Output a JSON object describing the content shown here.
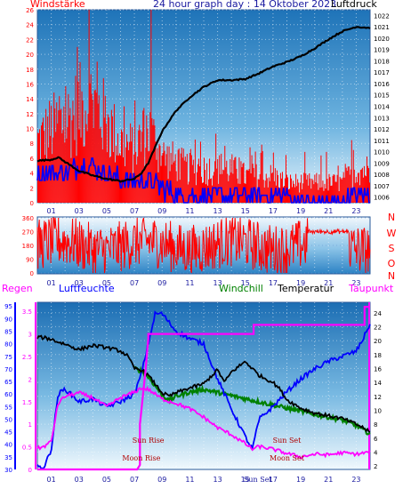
{
  "header": {
    "title": "24 hour graph day : 14 Oktober 2023",
    "left_label": "Windstärke",
    "right_label": "Luftdruck"
  },
  "colors": {
    "wind": "#ff0000",
    "gust_bars": "#ff0000",
    "wind_avg": "#0000ff",
    "pressure": "#000000",
    "direction": "#ff0000",
    "humidity": "#0000ff",
    "windchill": "#008000",
    "temperature": "#000000",
    "dewpoint": "#ff00ff",
    "rain": "#ff00ff",
    "left_axis": "#ff0000",
    "humidity_axis": "#0000ff"
  },
  "chart_data": [
    {
      "type": "bar",
      "title": "24 hour graph day : 14 Oktober 2023",
      "xticks": [
        "01",
        "03",
        "05",
        "07",
        "09",
        "11",
        "13",
        "15",
        "17",
        "19",
        "21",
        "23"
      ],
      "y_left": {
        "label": "Windstärke",
        "ticks": [
          0,
          2,
          4,
          6,
          8,
          10,
          12,
          14,
          16,
          18,
          20,
          22,
          24,
          26
        ],
        "ylim": [
          0,
          26
        ]
      },
      "y_right": {
        "label": "Luftdruck",
        "ticks": [
          1006,
          1007,
          1008,
          1009,
          1010,
          1011,
          1012,
          1013,
          1014,
          1015,
          1016,
          1017,
          1018,
          1019,
          1020,
          1021,
          1022
        ],
        "ylim": [
          1005.5,
          1022.5
        ]
      },
      "pressure": {
        "hours": [
          0,
          1,
          1.5,
          2,
          3,
          4,
          5,
          6,
          7,
          7.5,
          8,
          8.5,
          9,
          10,
          11,
          12,
          13,
          14,
          15,
          16,
          17,
          18,
          19,
          20,
          21,
          22,
          23,
          24
        ],
        "values": [
          1009.2,
          1009.3,
          1009.5,
          1009.1,
          1008.3,
          1007.9,
          1007.6,
          1007.4,
          1007.6,
          1008.1,
          1009.0,
          1010.4,
          1011.8,
          1013.6,
          1014.8,
          1015.7,
          1016.3,
          1016.3,
          1016.4,
          1016.9,
          1017.5,
          1017.9,
          1018.4,
          1019.1,
          1019.9,
          1020.6,
          1021.0,
          1020.9
        ]
      },
      "wind_gust_profile": {
        "hours": [
          0,
          1,
          2,
          3,
          4,
          5,
          6,
          7,
          8,
          9,
          10,
          11,
          12,
          13,
          14,
          15,
          16,
          17,
          18,
          19,
          20,
          21,
          22,
          23,
          24
        ],
        "values": [
          9,
          11,
          12,
          14,
          15,
          12,
          9,
          8,
          11,
          7,
          6,
          5,
          5,
          5,
          5,
          4,
          4,
          4,
          3,
          3,
          3,
          3,
          3,
          5,
          5
        ]
      },
      "wind_gust_peaks": [
        {
          "hour": 3.7,
          "value": 26
        },
        {
          "hour": 8.2,
          "value": 26
        },
        {
          "hour": 2.9,
          "value": 21
        },
        {
          "hour": 4.3,
          "value": 19
        }
      ],
      "wind_avg_profile": {
        "hours": [
          0,
          1,
          2,
          3,
          4,
          5,
          6,
          7,
          8,
          9,
          10,
          11,
          12,
          13,
          14,
          15,
          16,
          17,
          18,
          19,
          20,
          21,
          22,
          23,
          24
        ],
        "values": [
          4,
          4,
          4,
          5,
          5,
          4,
          3,
          3,
          3,
          2,
          1,
          1,
          1,
          1,
          1,
          1,
          1,
          1,
          1,
          0,
          0,
          0,
          0,
          1,
          1
        ]
      }
    },
    {
      "type": "line",
      "xticks": [
        "01",
        "03",
        "05",
        "07",
        "09",
        "11",
        "13",
        "15",
        "17",
        "19",
        "21",
        "23"
      ],
      "yticks": [
        0,
        90,
        180,
        270,
        360
      ],
      "ylim": [
        0,
        360
      ],
      "compass_labels": [
        "N",
        "W",
        "S",
        "O",
        "N"
      ]
    },
    {
      "type": "line",
      "xticks": [
        "01",
        "03",
        "05",
        "07",
        "09",
        "11",
        "13",
        "15",
        "17",
        "19",
        "21",
        "23"
      ],
      "legend": [
        "Regen",
        "Luftfeuchte",
        "Windchill",
        "Temperatur",
        "Taupunkt"
      ],
      "rain_axis": {
        "label": "Regen",
        "ticks": [
          0,
          0.5,
          1,
          1.5,
          2,
          2.5,
          3,
          3.5
        ],
        "ylim": [
          0,
          3.7
        ]
      },
      "humidity_axis": {
        "label": "Luftfeuchte",
        "ticks": [
          30,
          35,
          40,
          45,
          50,
          55,
          60,
          65,
          70,
          75,
          80,
          85,
          90,
          95
        ],
        "ylim": [
          30,
          96.5
        ]
      },
      "temperature_axis": {
        "label": "Temperatur",
        "ticks": [
          2,
          4,
          6,
          8,
          10,
          12,
          14,
          16,
          18,
          20,
          22,
          24
        ],
        "ylim": [
          1.5,
          25.5
        ]
      },
      "temperature": {
        "hours": [
          0,
          0.5,
          1,
          1.5,
          2,
          3,
          4,
          5,
          6,
          6.5,
          7,
          7.5,
          8,
          9,
          9.5,
          10,
          11,
          12,
          13,
          13.5,
          14,
          15,
          15.5,
          16,
          17,
          17.5,
          18,
          19,
          20,
          21,
          22,
          23,
          23.5,
          24
        ],
        "values": [
          20.5,
          20.4,
          20.2,
          19.8,
          19.5,
          18.7,
          19.3,
          19.0,
          18.5,
          17.8,
          16.0,
          15.8,
          15.0,
          12.5,
          12.0,
          12.5,
          13.2,
          13.8,
          15.8,
          14.0,
          15.5,
          17.0,
          16.0,
          15.0,
          14.0,
          13.0,
          11.5,
          10.3,
          9.6,
          9.2,
          8.8,
          8.0,
          7.5,
          6.8
        ]
      },
      "dewpoint": {
        "hours": [
          0,
          0.5,
          1,
          1.5,
          2,
          3,
          4,
          5,
          6,
          7,
          7.5,
          8,
          9,
          10,
          11,
          12,
          13,
          14,
          15,
          15.5,
          16,
          17,
          18,
          19,
          20,
          21,
          22,
          23,
          24
        ],
        "values": [
          4.5,
          4.8,
          5.5,
          11.0,
          12.0,
          12.5,
          11.8,
          10.5,
          11.8,
          12.6,
          13.2,
          13.0,
          11.6,
          11.0,
          10.2,
          9.0,
          7.5,
          6.5,
          5.2,
          4.4,
          4.8,
          4.4,
          3.8,
          3.3,
          3.7,
          3.6,
          3.9,
          3.7,
          4.0
        ]
      },
      "windchill": {
        "hours": [
          7,
          7.5,
          8,
          9,
          9.5,
          10,
          11,
          12,
          20,
          21,
          22,
          23,
          23.5,
          24
        ],
        "values": [
          16.0,
          15.6,
          14.8,
          12.2,
          11.4,
          12.0,
          12.6,
          13.0,
          9.4,
          9.0,
          8.6,
          7.8,
          7.2,
          6.6
        ]
      },
      "humidity": {
        "hours": [
          0,
          0.5,
          1,
          1.5,
          2,
          3,
          4,
          5,
          6,
          7,
          7.5,
          8,
          8.5,
          9,
          10,
          11,
          12,
          13,
          14,
          15,
          15.5,
          16,
          17,
          18,
          19,
          20,
          21,
          22,
          23,
          23.5,
          24
        ],
        "values": [
          31,
          31,
          38,
          60,
          62,
          57,
          58,
          55,
          57,
          60,
          68,
          80,
          92,
          92,
          85,
          82,
          80,
          66,
          54,
          43,
          38,
          50,
          55,
          61,
          66,
          70,
          73,
          75,
          77,
          82,
          88
        ]
      },
      "rain": {
        "hours": [
          0,
          7.2,
          7.4,
          7.4,
          7.8,
          8.0,
          8.0,
          15.6,
          15.6,
          23.6,
          23.6,
          24
        ],
        "values": [
          0,
          0,
          0.1,
          1.0,
          2.2,
          2.9,
          3.0,
          3.0,
          3.2,
          3.2,
          3.6,
          3.6
        ]
      },
      "astro_labels": [
        {
          "text": "Sun Rise",
          "hour": 8.0
        },
        {
          "text": "Moon Rise",
          "hour": 7.5
        },
        {
          "text": "Sun Set",
          "hour": 18.0
        },
        {
          "text": "Moon Set",
          "hour": 18.0
        },
        {
          "text": "Sun Set",
          "hour": 15.9
        }
      ]
    }
  ]
}
